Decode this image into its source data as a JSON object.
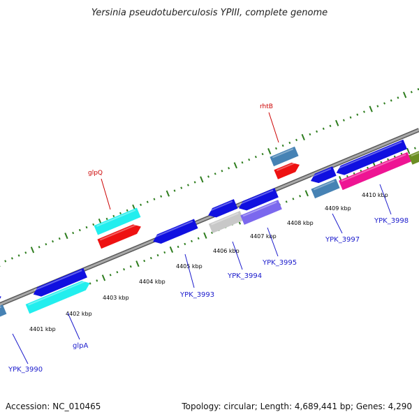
{
  "title": "Yersinia pseudotuberculosis YPIII, complete genome",
  "footer": {
    "accession": "Accession: NC_010465",
    "stats": "Topology: circular; Length: 4,689,441 bp; Genes: 4,290"
  },
  "scale_labels": [
    "4401 kbp",
    "4402 kbp",
    "4403 kbp",
    "4404 kbp",
    "4405 kbp",
    "4406 kbp",
    "4407 kbp",
    "4408 kbp",
    "4409 kbp",
    "4410 kbp"
  ],
  "gene_labels": [
    "glpQ",
    "rhtB",
    "glpA",
    "YPK_3990",
    "YPK_3993",
    "YPK_3994",
    "YPK_3995",
    "YPK_3997",
    "YPK_3998"
  ],
  "colors": {
    "backbone": "#8a8a8a",
    "ticks": "#2e7d1e",
    "blue": "#1010e0",
    "cyan": "#22eeee",
    "red": "#ee1111",
    "steel": "#4682b4",
    "gray": "#c8c8c8",
    "purple": "#7b68ee",
    "pink": "#ee1493",
    "olive": "#6b8e23",
    "label_red": "#cc0000",
    "label_blue": "#1a1acc"
  }
}
